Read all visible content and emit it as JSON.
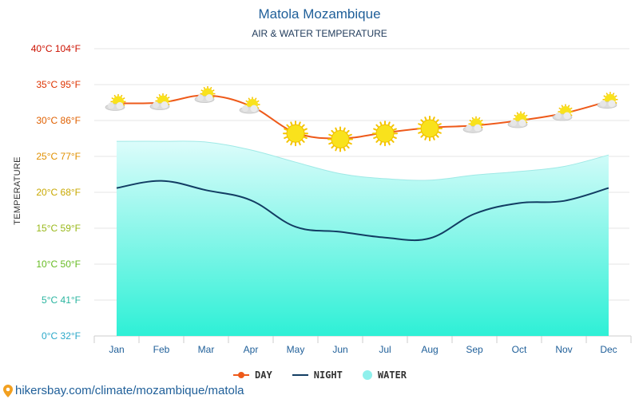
{
  "title": "Matola Mozambique",
  "subtitle": "AIR & WATER TEMPERATURE",
  "footer": {
    "url": "hikersbay.com/climate/mozambique/matola",
    "icon": "location-pin-icon"
  },
  "chart_data": {
    "type": "line",
    "title": "Matola Mozambique",
    "subtitle": "AIR & WATER TEMPERATURE",
    "xlabel": "",
    "ylabel": "TEMPERATURE",
    "categories": [
      "Jan",
      "Feb",
      "Mar",
      "Apr",
      "May",
      "Jun",
      "Jul",
      "Aug",
      "Sep",
      "Oct",
      "Nov",
      "Dec"
    ],
    "ylim": [
      0,
      40
    ],
    "y_ticks": [
      {
        "value": 0,
        "label": "0°C 32°F",
        "color": "#2aa8c8"
      },
      {
        "value": 5,
        "label": "5°C 41°F",
        "color": "#2bb5a0"
      },
      {
        "value": 10,
        "label": "10°C 50°F",
        "color": "#66bb22"
      },
      {
        "value": 15,
        "label": "15°C 59°F",
        "color": "#99b81a"
      },
      {
        "value": 20,
        "label": "20°C 68°F",
        "color": "#c8a800"
      },
      {
        "value": 25,
        "label": "25°C 77°F",
        "color": "#e09000"
      },
      {
        "value": 30,
        "label": "30°C 86°F",
        "color": "#e06000"
      },
      {
        "value": 35,
        "label": "35°C 95°F",
        "color": "#dd3300"
      },
      {
        "value": 40,
        "label": "40°C 104°F",
        "color": "#cc1100"
      }
    ],
    "grid": true,
    "legend_position": "bottom",
    "series": [
      {
        "name": "DAY",
        "color": "#ee5a1a",
        "values": [
          32.4,
          32.5,
          33.5,
          32.0,
          28.3,
          27.5,
          28.3,
          29.0,
          29.3,
          30.0,
          31.0,
          32.7
        ]
      },
      {
        "name": "NIGHT",
        "color": "#123d63",
        "values": [
          20.6,
          21.6,
          20.3,
          18.9,
          15.2,
          14.5,
          13.7,
          13.6,
          17.0,
          18.5,
          18.8,
          20.6
        ]
      },
      {
        "name": "WATER",
        "color": "#8ff0ec",
        "values": [
          27.1,
          27.1,
          27.0,
          25.9,
          24.2,
          22.6,
          21.9,
          21.7,
          22.4,
          22.9,
          23.6,
          25.2
        ]
      }
    ],
    "weather_icons": [
      "partly-cloudy-icon",
      "partly-cloudy-icon",
      "partly-cloudy-icon",
      "partly-cloudy-icon",
      "sun-icon",
      "sun-icon",
      "sun-icon",
      "sun-icon",
      "partly-cloudy-icon",
      "partly-cloudy-icon",
      "partly-cloudy-icon",
      "partly-cloudy-icon"
    ]
  }
}
